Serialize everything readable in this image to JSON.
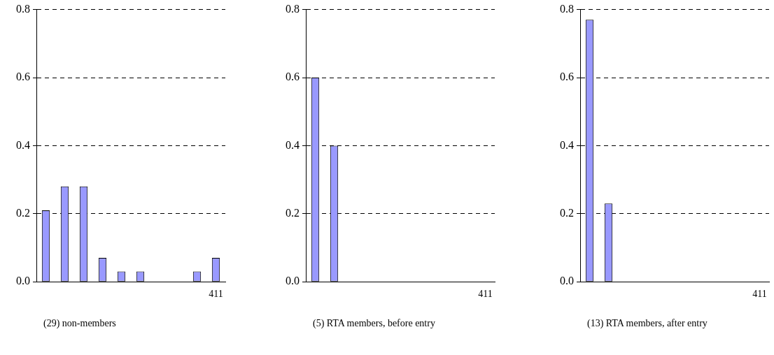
{
  "chart_data": [
    {
      "type": "bar",
      "xlabel": "(29) non-members",
      "categories": [
        null,
        null,
        null,
        null,
        null,
        null,
        null,
        null,
        null,
        "411"
      ],
      "values": [
        0.21,
        0.28,
        0.28,
        0.07,
        0.03,
        0.03,
        0,
        0,
        0.03,
        0.07
      ],
      "color": "#9999ff",
      "ylim": [
        0,
        0.8
      ],
      "yticks": [
        {
          "value": 0,
          "label": "0.0"
        },
        {
          "value": 0.2,
          "label": "0.2"
        },
        {
          "value": 0.4,
          "label": "0.4"
        },
        {
          "value": 0.6,
          "label": "0.6"
        },
        {
          "value": 0.8,
          "label": "0.8"
        }
      ],
      "grid": "y"
    },
    {
      "type": "bar",
      "xlabel": "(5) RTA members, before entry",
      "categories": [
        null,
        null,
        null,
        null,
        null,
        null,
        null,
        null,
        null,
        "411"
      ],
      "values": [
        0.6,
        0.4,
        0,
        0,
        0,
        0,
        0,
        0,
        0,
        0
      ],
      "color": "#9999ff",
      "ylim": [
        0,
        0.8
      ],
      "yticks": [
        {
          "value": 0,
          "label": "0.0"
        },
        {
          "value": 0.2,
          "label": "0.2"
        },
        {
          "value": 0.4,
          "label": "0.4"
        },
        {
          "value": 0.6,
          "label": "0.6"
        },
        {
          "value": 0.8,
          "label": "0.8"
        }
      ],
      "grid": "y"
    },
    {
      "type": "bar",
      "xlabel": "(13) RTA members, after entry",
      "categories": [
        null,
        null,
        null,
        null,
        null,
        null,
        null,
        null,
        null,
        "411"
      ],
      "values": [
        0.77,
        0.23,
        0,
        0,
        0,
        0,
        0,
        0,
        0,
        0
      ],
      "color": "#9999ff",
      "ylim": [
        0,
        0.8
      ],
      "yticks": [
        {
          "value": 0,
          "label": "0.0"
        },
        {
          "value": 0.2,
          "label": "0.2"
        },
        {
          "value": 0.4,
          "label": "0.4"
        },
        {
          "value": 0.6,
          "label": "0.6"
        },
        {
          "value": 0.8,
          "label": "0.8"
        }
      ],
      "grid": "y"
    }
  ]
}
